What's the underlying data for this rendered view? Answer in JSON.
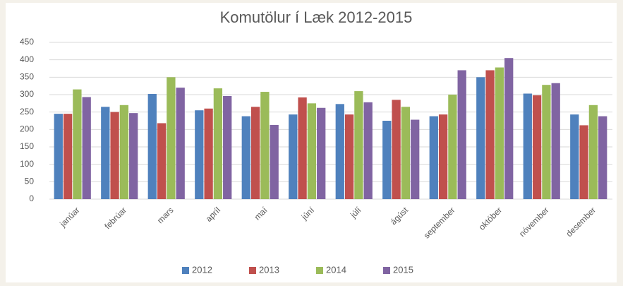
{
  "chart_data": {
    "type": "bar",
    "title": "Komutölur í Læk 2012-2015",
    "categories": [
      "janúar",
      "febrúar",
      "mars",
      "apríl",
      "maí",
      "júní",
      "júlí",
      "ágúst",
      "september",
      "október",
      "nóvember",
      "desember"
    ],
    "series": [
      {
        "name": "2012",
        "color": "#4f81bd",
        "values": [
          245,
          265,
          302,
          255,
          238,
          243,
          273,
          225,
          238,
          350,
          303,
          243
        ]
      },
      {
        "name": "2013",
        "color": "#c0504d",
        "values": [
          245,
          250,
          218,
          260,
          265,
          292,
          243,
          285,
          243,
          370,
          298,
          212
        ]
      },
      {
        "name": "2014",
        "color": "#9bbb59",
        "values": [
          315,
          270,
          350,
          318,
          308,
          275,
          310,
          265,
          300,
          378,
          328,
          270
        ]
      },
      {
        "name": "2015",
        "color": "#8064a2",
        "values": [
          293,
          247,
          320,
          296,
          213,
          262,
          278,
          228,
          370,
          405,
          333,
          238
        ]
      }
    ],
    "ylim": [
      0,
      450
    ],
    "yticks": [
      0,
      50,
      100,
      150,
      200,
      250,
      300,
      350,
      400,
      450
    ],
    "grid": true,
    "legend": "bottom"
  }
}
